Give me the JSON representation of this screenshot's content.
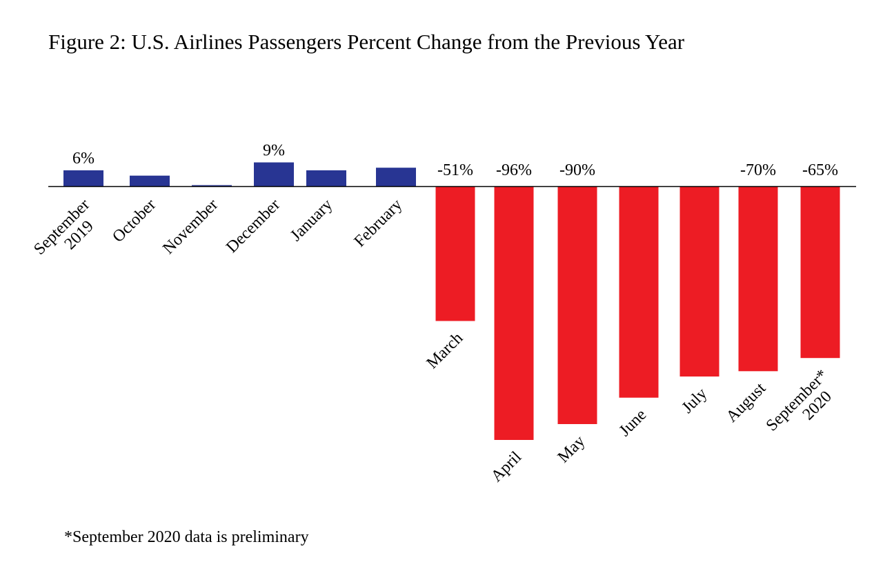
{
  "chart_data": {
    "type": "bar",
    "title": "Figure 2: U.S. Airlines Passengers Percent Change from the Previous Year",
    "xlabel": "",
    "ylabel": "",
    "categories": [
      [
        "September",
        "2019"
      ],
      [
        "October"
      ],
      [
        "November"
      ],
      [
        "December"
      ],
      [
        "January"
      ],
      [
        "February"
      ],
      [
        "March"
      ],
      [
        "April"
      ],
      [
        "May"
      ],
      [
        "June"
      ],
      [
        "July"
      ],
      [
        "August"
      ],
      [
        "September*",
        "2020"
      ]
    ],
    "values": [
      6,
      4,
      0.3,
      9,
      6,
      7,
      -51,
      -96,
      -90,
      -80,
      -72,
      -70,
      -65
    ],
    "data_labels": [
      "6%",
      "",
      "",
      "9%",
      "",
      "",
      "-51%",
      "-96%",
      "-90%",
      "",
      "",
      "-70%",
      "-65%"
    ],
    "ylim": [
      -96,
      9
    ],
    "grid": false,
    "legend": "none",
    "colors": {
      "positive": "#283593",
      "negative": "#ed1c24",
      "axis": "#000000"
    },
    "footnote": "*September 2020 data is preliminary"
  }
}
